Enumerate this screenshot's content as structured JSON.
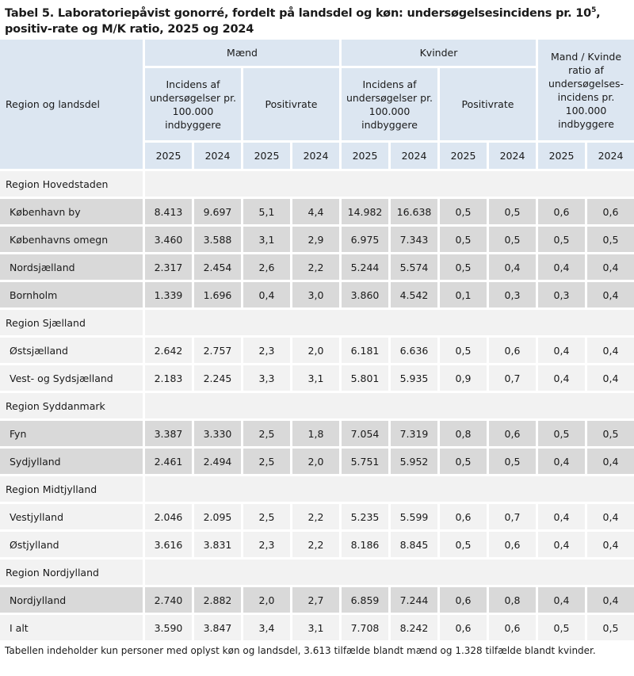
{
  "title": {
    "part1": "Tabel 5. Laboratoriepåvist gonorré, fordelt på landsdel og køn: undersøgelsesincidens pr. 10",
    "sup": "5",
    "part2": ", positiv-rate og M/K ratio, 2025 og 2024"
  },
  "header": {
    "region_col": "Region og landsdel",
    "maend": "Mænd",
    "kvinder": "Kvinder",
    "ratio": "Mand / Kvinde ratio af undersøgelses-incidens pr. 100.000 indbyggere",
    "incidens": "Incidens af undersøgelser pr. 100.000 indbyggere",
    "positivrate": "Positivrate",
    "years": [
      "2025",
      "2024",
      "2025",
      "2024",
      "2025",
      "2024",
      "2025",
      "2024",
      "2025",
      "2024"
    ]
  },
  "rows": [
    {
      "type": "region",
      "name": "Region Hovedstaden"
    },
    {
      "type": "data",
      "shade": "dark",
      "name": "København by",
      "values": [
        "8.413",
        "9.697",
        "5,1",
        "4,4",
        "14.982",
        "16.638",
        "0,5",
        "0,5",
        "0,6",
        "0,6"
      ]
    },
    {
      "type": "data",
      "shade": "dark",
      "name": "Københavns omegn",
      "values": [
        "3.460",
        "3.588",
        "3,1",
        "2,9",
        "6.975",
        "7.343",
        "0,5",
        "0,5",
        "0,5",
        "0,5"
      ]
    },
    {
      "type": "data",
      "shade": "dark",
      "name": "Nordsjælland",
      "values": [
        "2.317",
        "2.454",
        "2,6",
        "2,2",
        "5.244",
        "5.574",
        "0,5",
        "0,4",
        "0,4",
        "0,4"
      ]
    },
    {
      "type": "data",
      "shade": "dark",
      "name": "Bornholm",
      "values": [
        "1.339",
        "1.696",
        "0,4",
        "3,0",
        "3.860",
        "4.542",
        "0,1",
        "0,3",
        "0,3",
        "0,4"
      ]
    },
    {
      "type": "region",
      "name": "Region Sjælland"
    },
    {
      "type": "data",
      "shade": "light",
      "name": "Østsjælland",
      "values": [
        "2.642",
        "2.757",
        "2,3",
        "2,0",
        "6.181",
        "6.636",
        "0,5",
        "0,6",
        "0,4",
        "0,4"
      ]
    },
    {
      "type": "data",
      "shade": "light",
      "name": "Vest- og Sydsjælland",
      "values": [
        "2.183",
        "2.245",
        "3,3",
        "3,1",
        "5.801",
        "5.935",
        "0,9",
        "0,7",
        "0,4",
        "0,4"
      ]
    },
    {
      "type": "region",
      "name": "Region Syddanmark"
    },
    {
      "type": "data",
      "shade": "dark",
      "name": "Fyn",
      "values": [
        "3.387",
        "3.330",
        "2,5",
        "1,8",
        "7.054",
        "7.319",
        "0,8",
        "0,6",
        "0,5",
        "0,5"
      ]
    },
    {
      "type": "data",
      "shade": "dark",
      "name": "Sydjylland",
      "values": [
        "2.461",
        "2.494",
        "2,5",
        "2,0",
        "5.751",
        "5.952",
        "0,5",
        "0,5",
        "0,4",
        "0,4"
      ]
    },
    {
      "type": "region",
      "name": "Region Midtjylland"
    },
    {
      "type": "data",
      "shade": "light",
      "name": "Vestjylland",
      "values": [
        "2.046",
        "2.095",
        "2,5",
        "2,2",
        "5.235",
        "5.599",
        "0,6",
        "0,7",
        "0,4",
        "0,4"
      ]
    },
    {
      "type": "data",
      "shade": "light",
      "name": "Østjylland",
      "values": [
        "3.616",
        "3.831",
        "2,3",
        "2,2",
        "8.186",
        "8.845",
        "0,5",
        "0,6",
        "0,4",
        "0,4"
      ]
    },
    {
      "type": "region",
      "name": "Region Nordjylland"
    },
    {
      "type": "data",
      "shade": "dark",
      "name": "Nordjylland",
      "values": [
        "2.740",
        "2.882",
        "2,0",
        "2,7",
        "6.859",
        "7.244",
        "0,6",
        "0,8",
        "0,4",
        "0,4"
      ]
    },
    {
      "type": "data",
      "shade": "light",
      "name": "I alt",
      "values": [
        "3.590",
        "3.847",
        "3,4",
        "3,1",
        "7.708",
        "8.242",
        "0,6",
        "0,6",
        "0,5",
        "0,5"
      ]
    }
  ],
  "footnote": "Tabellen indeholder kun personer med oplyst køn og landsdel, 3.613 tilfælde blandt mænd og 1.328 tilfælde blandt kvinder."
}
